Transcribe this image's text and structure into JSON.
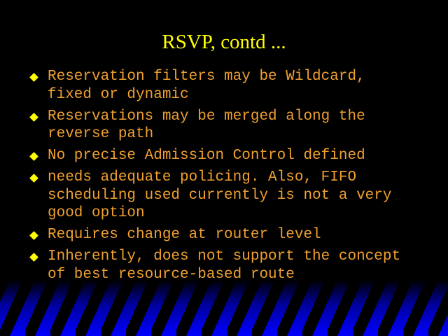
{
  "title": "RSVP, contd ...",
  "bullets": [
    {
      "lines": [
        "Reservation filters may be Wildcard,",
        "fixed or dynamic"
      ]
    },
    {
      "lines": [
        "Reservations may be merged along the",
        "reverse path"
      ]
    },
    {
      "lines": [
        "No precise Admission Control defined"
      ]
    },
    {
      "lines": [
        "needs adequate policing. Also, FIFO",
        "scheduling used currently is not a very",
        "good option"
      ]
    },
    {
      "lines": [
        "Requires change at router level"
      ]
    },
    {
      "lines": [
        "Inherently, does not support the concept",
        "of best resource-based route"
      ]
    }
  ]
}
